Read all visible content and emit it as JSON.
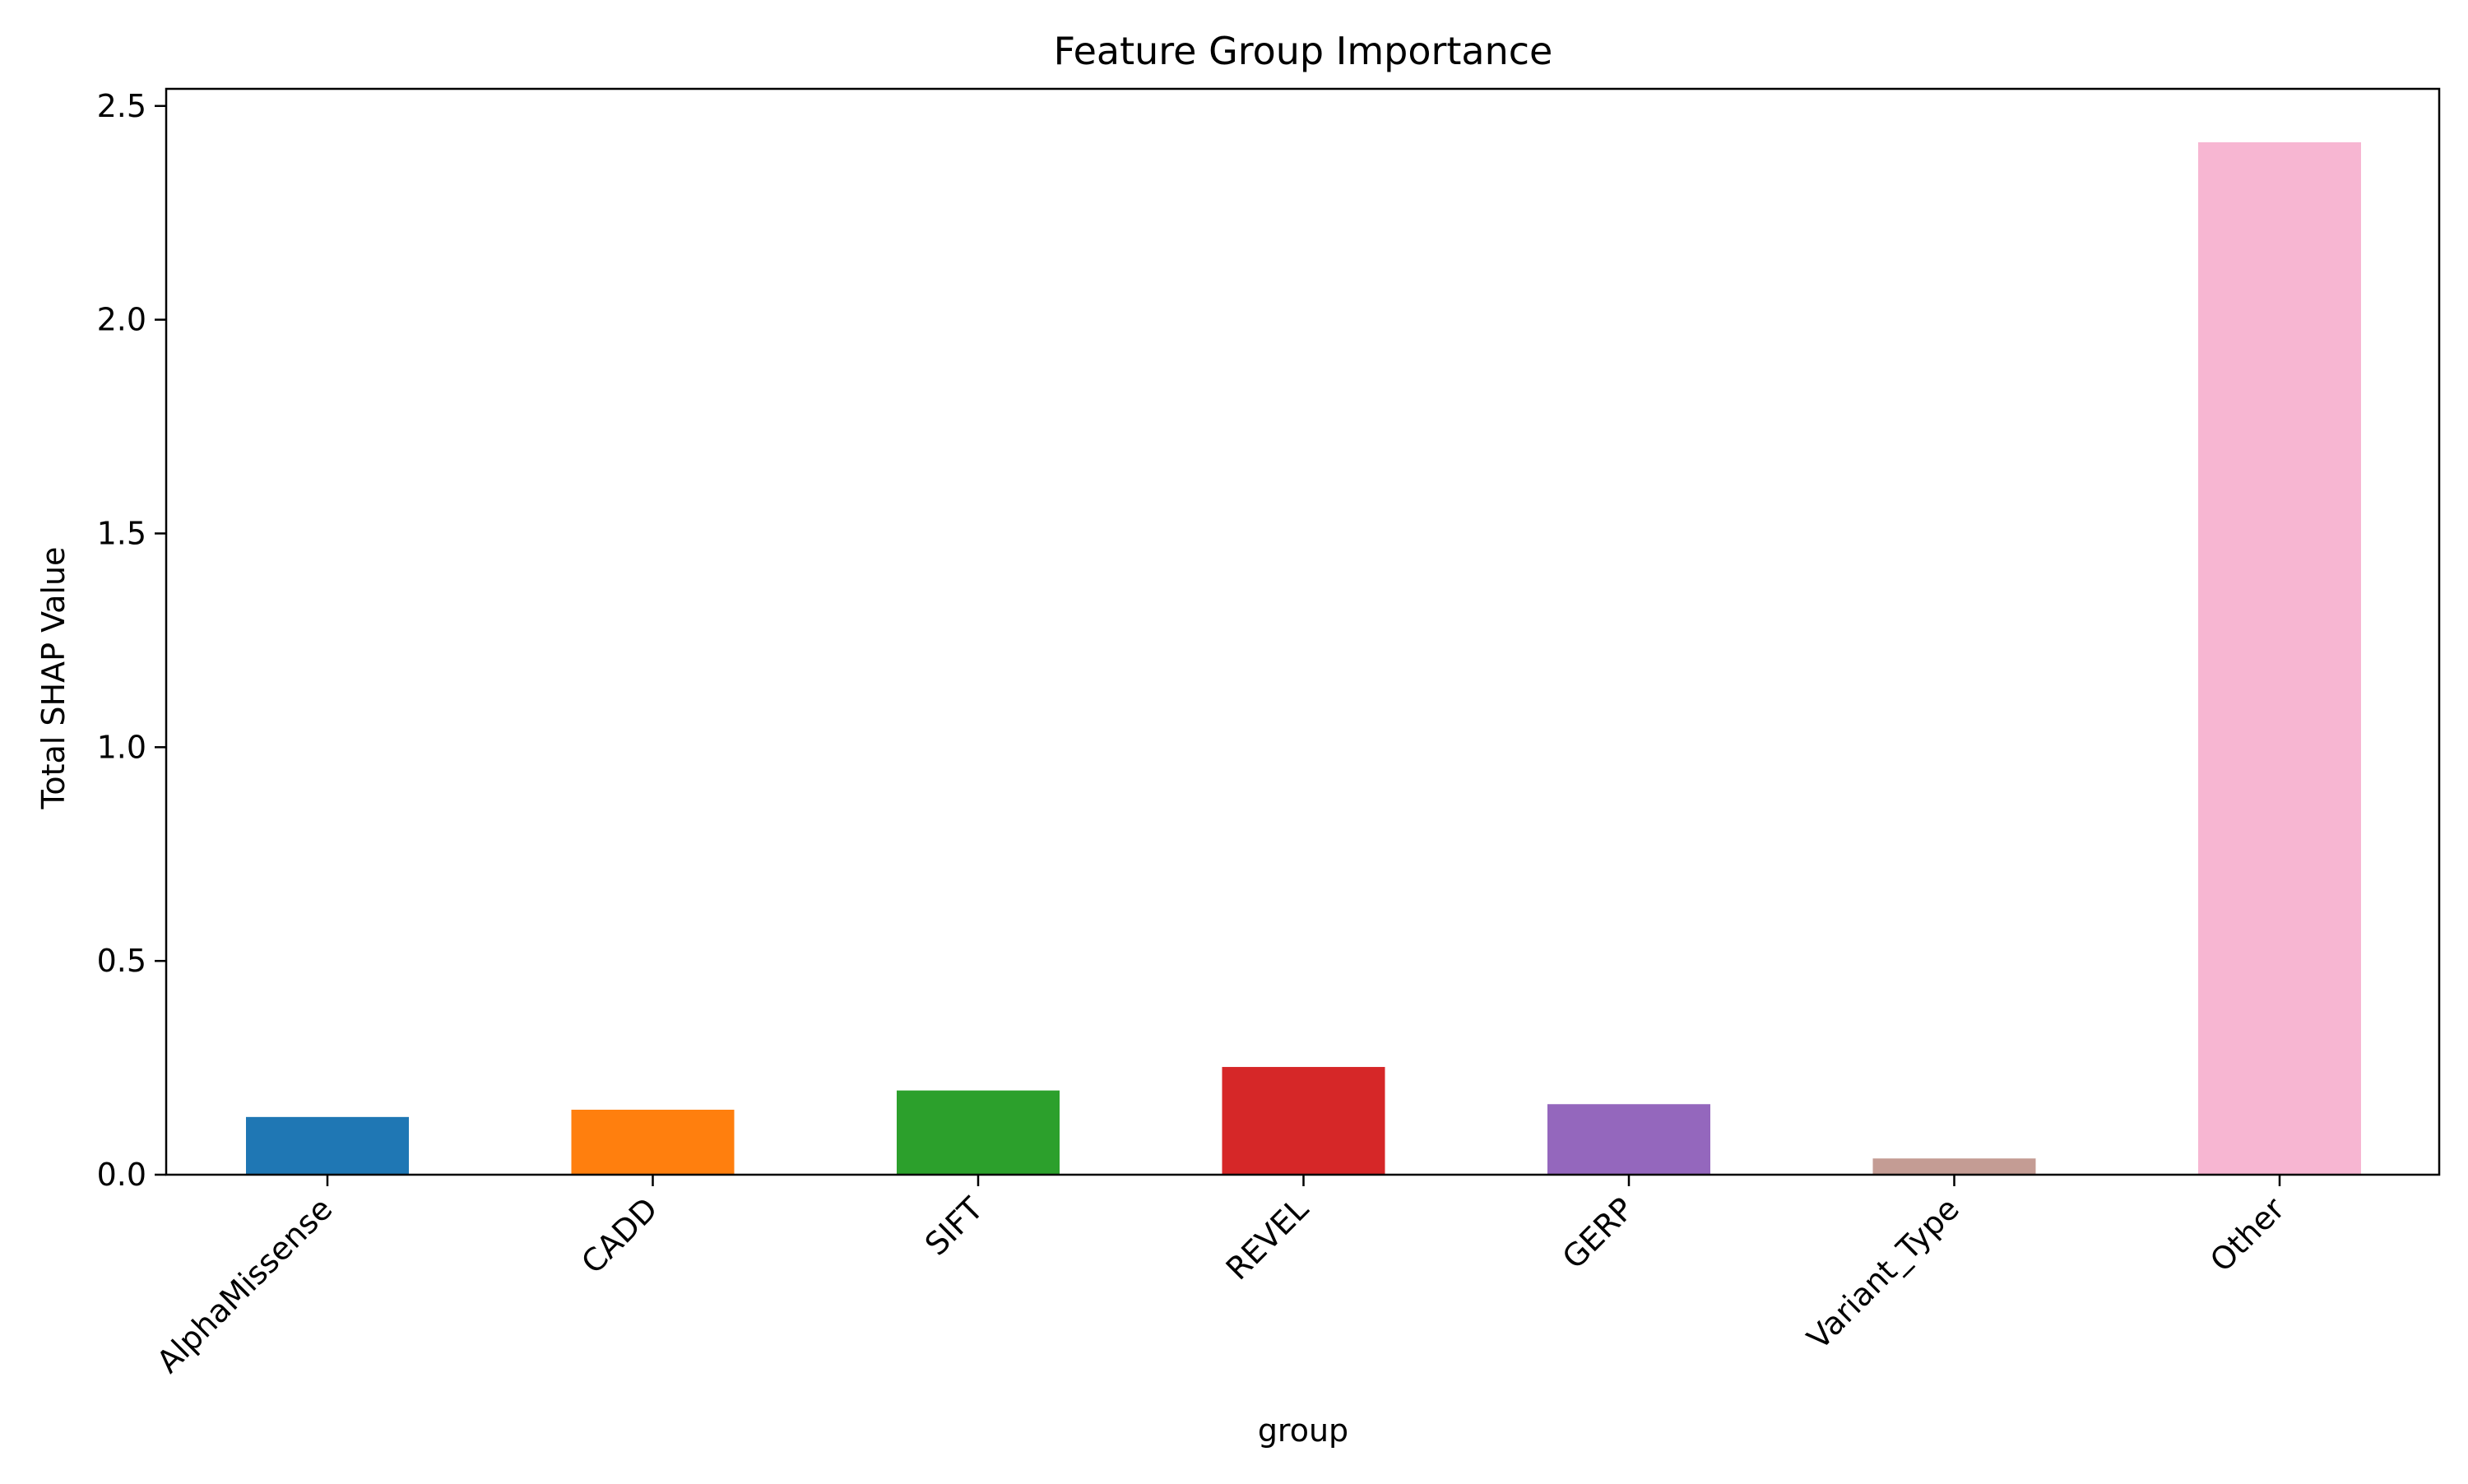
{
  "chart_data": {
    "type": "bar",
    "title": "Feature Group Importance",
    "xlabel": "group",
    "ylabel": "Total SHAP Value",
    "categories": [
      "AlphaMissense",
      "CADD",
      "SIFT",
      "REVEL",
      "GERP",
      "Variant_Type",
      "Other"
    ],
    "values": [
      0.135,
      0.152,
      0.197,
      0.252,
      0.165,
      0.038,
      2.415
    ],
    "colors": [
      "#1f77b4",
      "#ff7f0e",
      "#2ca02c",
      "#d62728",
      "#9467bd",
      "#c49c94",
      "#f7b6d2"
    ],
    "ylim": [
      0,
      2.54
    ],
    "yticks": [
      0.0,
      0.5,
      1.0,
      1.5,
      2.0,
      2.5
    ],
    "ytick_labels": [
      "0.0",
      "0.5",
      "1.0",
      "1.5",
      "2.0",
      "2.5"
    ],
    "grid": false,
    "legend": "none"
  }
}
